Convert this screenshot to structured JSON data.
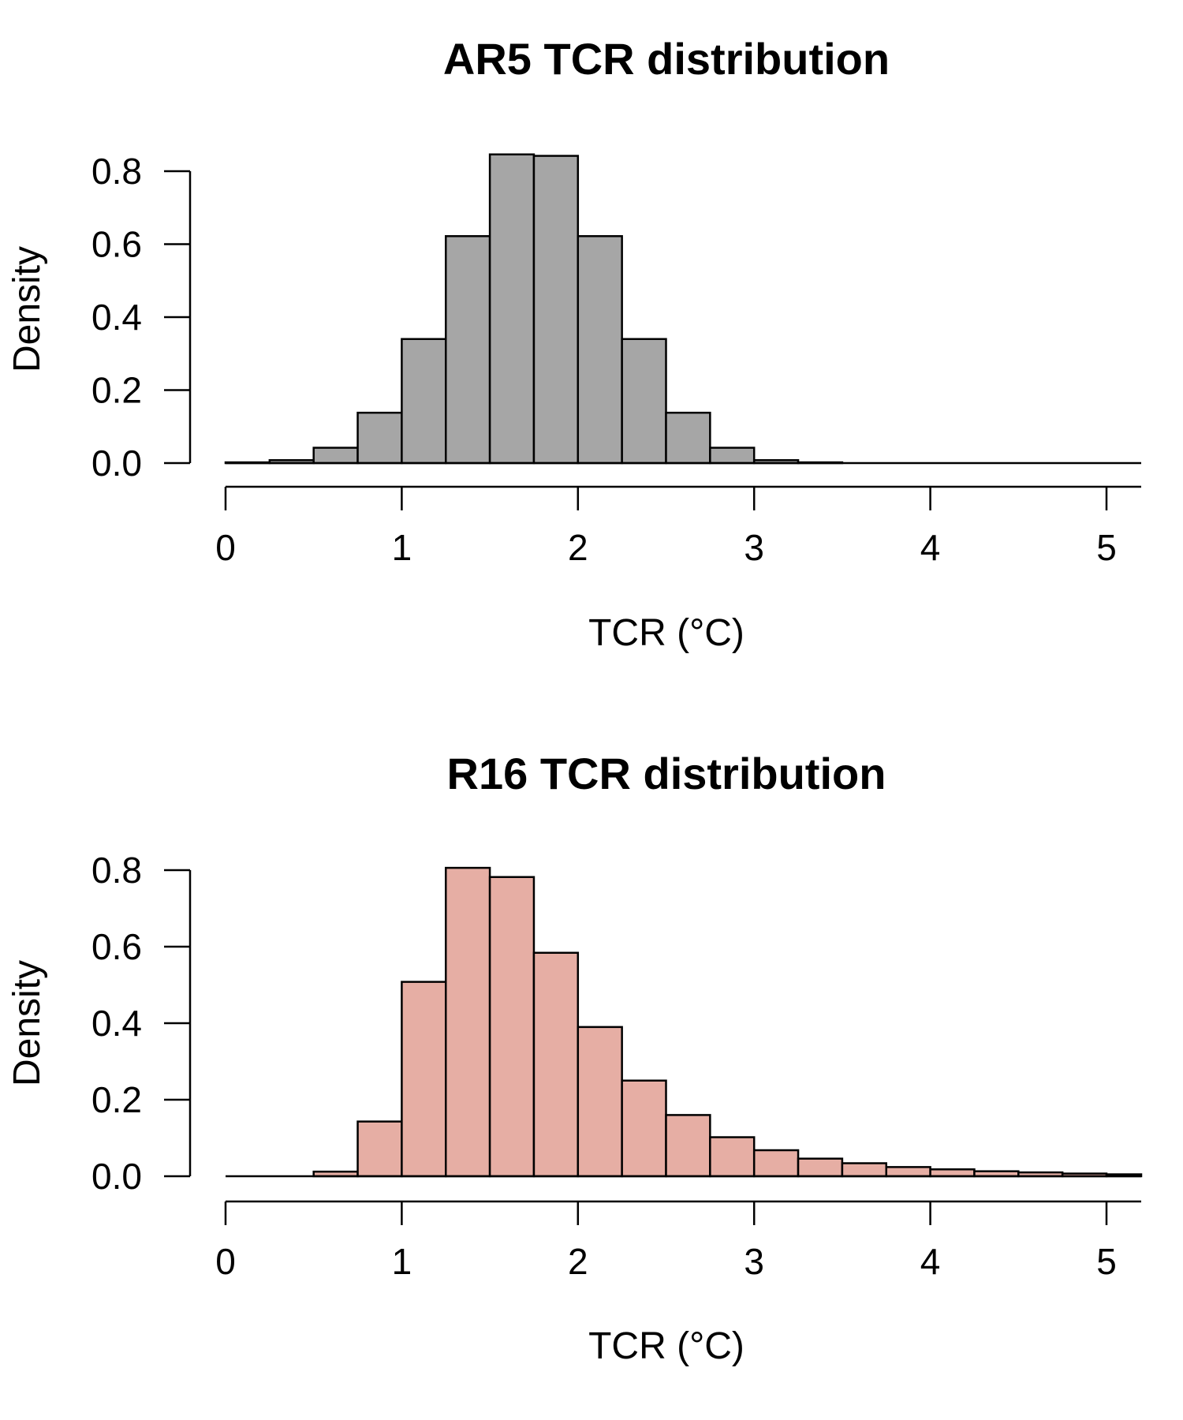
{
  "chart_data": [
    {
      "type": "bar",
      "title": "AR5 TCR distribution",
      "xlabel": "TCR (°C)",
      "ylabel": "Density",
      "xlim": [
        0,
        5.2
      ],
      "ylim": [
        0,
        0.8
      ],
      "x_ticks": [
        "0",
        "1",
        "2",
        "3",
        "4",
        "5"
      ],
      "y_ticks": [
        "0.0",
        "0.2",
        "0.4",
        "0.6",
        "0.8"
      ],
      "bin_width": 0.25,
      "bin_starts": [
        0.0,
        0.25,
        0.5,
        0.75,
        1.0,
        1.25,
        1.5,
        1.75,
        2.0,
        2.25,
        2.5,
        2.75,
        3.0,
        3.25,
        3.5,
        3.75,
        4.0,
        4.25,
        4.5,
        4.75,
        5.0
      ],
      "values": [
        0.002,
        0.008,
        0.042,
        0.138,
        0.34,
        0.622,
        0.846,
        0.842,
        0.622,
        0.34,
        0.138,
        0.042,
        0.008,
        0.002,
        0.0,
        0.0,
        0.0,
        0.0,
        0.0,
        0.0,
        0.0
      ],
      "fill_color": "#a6a6a6",
      "grid": false,
      "legend": "none"
    },
    {
      "type": "bar",
      "title": "R16 TCR distribution",
      "xlabel": "TCR (°C)",
      "ylabel": "Density",
      "xlim": [
        0,
        5.2
      ],
      "ylim": [
        0,
        0.8
      ],
      "x_ticks": [
        "0",
        "1",
        "2",
        "3",
        "4",
        "5"
      ],
      "y_ticks": [
        "0.0",
        "0.2",
        "0.4",
        "0.6",
        "0.8"
      ],
      "bin_width": 0.25,
      "bin_starts": [
        0.0,
        0.25,
        0.5,
        0.75,
        1.0,
        1.25,
        1.5,
        1.75,
        2.0,
        2.25,
        2.5,
        2.75,
        3.0,
        3.25,
        3.5,
        3.75,
        4.0,
        4.25,
        4.5,
        4.75,
        5.0
      ],
      "values": [
        0.0,
        0.0,
        0.012,
        0.143,
        0.508,
        0.806,
        0.782,
        0.584,
        0.39,
        0.25,
        0.16,
        0.102,
        0.068,
        0.046,
        0.034,
        0.024,
        0.018,
        0.013,
        0.01,
        0.007,
        0.005
      ],
      "fill_color": "#e6aea4",
      "grid": false,
      "legend": "none"
    }
  ]
}
